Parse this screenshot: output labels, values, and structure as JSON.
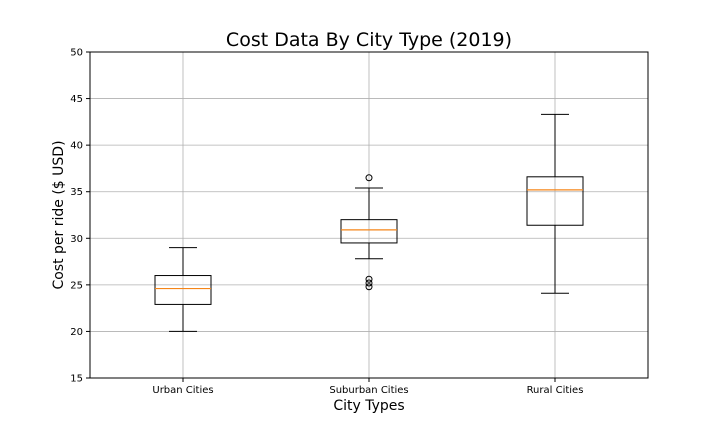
{
  "chart_data": {
    "type": "box",
    "title": "Cost Data By City Type (2019)",
    "xlabel": "City Types",
    "ylabel": "Cost per ride ($ USD)",
    "ylim": [
      15,
      50
    ],
    "yticks": [
      15,
      20,
      25,
      30,
      35,
      40,
      45,
      50
    ],
    "yticklabels": [
      "15",
      "20",
      "25",
      "30",
      "35",
      "40",
      "45",
      "50"
    ],
    "grid": true,
    "colors": {
      "box": "#000000",
      "median": "#f58518",
      "grid": "#b0b0b0"
    },
    "categories": [
      "Urban Cities",
      "Suburban Cities",
      "Rural Cities"
    ],
    "boxes": [
      {
        "category": "Urban Cities",
        "whisker_low": 20.0,
        "q1": 22.9,
        "median": 24.6,
        "q3": 26.0,
        "whisker_high": 29.0,
        "outliers": []
      },
      {
        "category": "Suburban Cities",
        "whisker_low": 27.8,
        "q1": 29.5,
        "median": 30.9,
        "q3": 32.0,
        "whisker_high": 35.4,
        "outliers": [
          36.5,
          25.6,
          25.2,
          24.8
        ]
      },
      {
        "category": "Rural Cities",
        "whisker_low": 24.1,
        "q1": 31.4,
        "median": 35.2,
        "q3": 36.6,
        "whisker_high": 43.3,
        "outliers": []
      }
    ]
  }
}
